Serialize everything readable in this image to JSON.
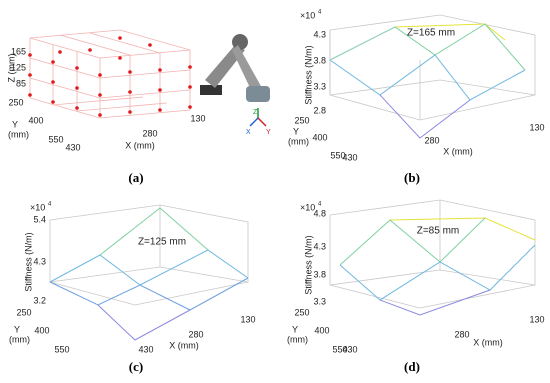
{
  "panels": [
    {
      "caption": "(a)",
      "z_label": "Z  (mm)",
      "z_ticks": [
        "165",
        "125",
        "85"
      ],
      "y_label": [
        "Y",
        "(mm)"
      ],
      "y_ticks": [
        "250",
        "400",
        "550"
      ],
      "x_label": "X (mm)",
      "x_ticks": [
        "430",
        "280",
        "130"
      ],
      "robot_axes": [
        "Z",
        "X",
        "Y"
      ]
    },
    {
      "caption": "(b)",
      "scale": [
        "×10",
        "4"
      ],
      "stiffness_label": "Stiffness (N/m)",
      "z_ticks": [
        "4.3",
        "3.8",
        "3.3",
        "2.8"
      ],
      "plane_label": "Z=165 mm",
      "y_label": [
        "Y",
        "(mm)"
      ],
      "y_ticks": [
        "250",
        "400",
        "550"
      ],
      "x_label": "X (mm)",
      "x_ticks": [
        "430",
        "280",
        "130"
      ]
    },
    {
      "caption": "(c)",
      "scale": [
        "×10",
        "4"
      ],
      "stiffness_label": "Stiffness (N/m)",
      "z_ticks": [
        "5.4",
        "4.3",
        "3.2"
      ],
      "plane_label": "Z=125 mm",
      "y_label": [
        "Y",
        "(mm)"
      ],
      "y_ticks": [
        "250",
        "400",
        "550"
      ],
      "x_label": "X (mm)",
      "x_ticks": [
        "430",
        "280",
        "130"
      ]
    },
    {
      "caption": "(d)",
      "scale": [
        "×10",
        "4"
      ],
      "stiffness_label": "Stiffness (N/m)",
      "z_ticks": [
        "4.8",
        "4.3",
        "3.8",
        "3.3"
      ],
      "plane_label": "Z=85 mm",
      "y_label": [
        "Y",
        "(mm)"
      ],
      "y_ticks": [
        "250",
        "400",
        "550"
      ],
      "x_label": "X (mm)",
      "x_ticks": [
        "430",
        "280",
        "130"
      ]
    }
  ]
}
